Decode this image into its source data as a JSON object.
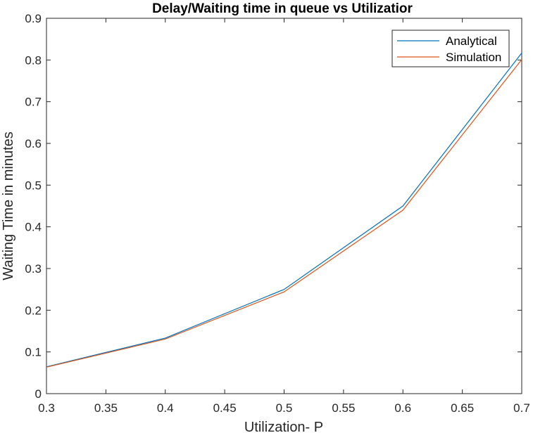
{
  "chart_data": {
    "type": "line",
    "title": "Delay/Waiting time in queue vs Utilizatior",
    "xlabel": "Utilization- P",
    "ylabel": "Waiting Time in minutes",
    "xlim": [
      0.3,
      0.7
    ],
    "ylim": [
      0,
      0.9
    ],
    "xticks": [
      0.3,
      0.35,
      0.4,
      0.45,
      0.5,
      0.55,
      0.6,
      0.65,
      0.7
    ],
    "xtick_labels": [
      "0.3",
      "0.35",
      "0.4",
      "0.45",
      "0.5",
      "0.55",
      "0.6",
      "0.65",
      "0.7"
    ],
    "yticks": [
      0,
      0.1,
      0.2,
      0.3,
      0.4,
      0.5,
      0.6,
      0.7,
      0.8,
      0.9
    ],
    "ytick_labels": [
      "0",
      "0.1",
      "0.2",
      "0.3",
      "0.4",
      "0.5",
      "0.6",
      "0.7",
      "0.8",
      "0.9"
    ],
    "grid": false,
    "legend_position": "top-right",
    "x": [
      0.3,
      0.4,
      0.5,
      0.6,
      0.7
    ],
    "series": [
      {
        "name": "Analytical",
        "color": "#0072bd",
        "values": [
          0.0643,
          0.1333,
          0.25,
          0.45,
          0.8167
        ]
      },
      {
        "name": "Simulation",
        "color": "#d95319",
        "values": [
          0.0635,
          0.131,
          0.244,
          0.44,
          0.801
        ]
      }
    ]
  }
}
